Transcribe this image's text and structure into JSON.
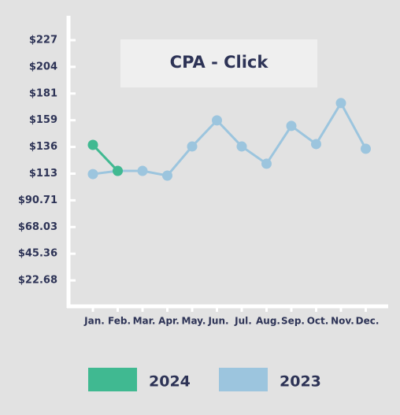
{
  "chart_data": {
    "type": "line",
    "title": "CPA - Click",
    "categories": [
      "Jan.",
      "Feb.",
      "Mar.",
      "Apr.",
      "May.",
      "Jun.",
      "Jul.",
      "Aug.",
      "Sep.",
      "Oct.",
      "Nov.",
      "Dec."
    ],
    "series": [
      {
        "name": "2024",
        "color": "#40b991",
        "values": [
          137.8,
          115.7,
          null,
          null,
          null,
          null,
          null,
          null,
          null,
          null,
          null,
          null
        ]
      },
      {
        "name": "2023",
        "color": "#9cc5de",
        "values": [
          113,
          115.7,
          115.7,
          111.7,
          136.5,
          158.6,
          136.5,
          121.8,
          153.9,
          138.5,
          173.3,
          134.5
        ]
      }
    ],
    "ylim": [
      0,
      247.5
    ],
    "yticks": [
      {
        "value": 22.68,
        "label": "$22.68"
      },
      {
        "value": 45.36,
        "label": "$45.36"
      },
      {
        "value": 68.03,
        "label": "$68.03"
      },
      {
        "value": 90.71,
        "label": "$90.71"
      },
      {
        "value": 113.39,
        "label": "$113"
      },
      {
        "value": 136.07,
        "label": "$136"
      },
      {
        "value": 158.75,
        "label": "$159"
      },
      {
        "value": 181.43,
        "label": "$181"
      },
      {
        "value": 204.1,
        "label": "$204"
      },
      {
        "value": 226.78,
        "label": "$227"
      }
    ],
    "grid": false,
    "legend": "bottom"
  }
}
